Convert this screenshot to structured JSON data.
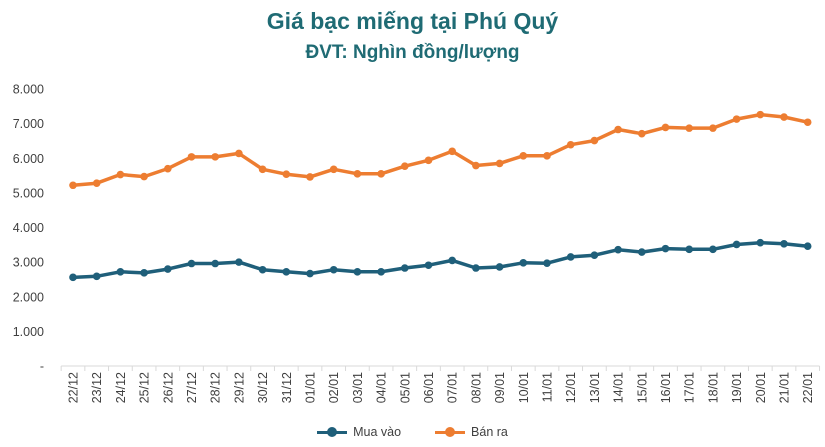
{
  "chart_data": {
    "type": "line",
    "title": "Giá bạc miếng tại Phú Quý",
    "subtitle": "ĐVT: Nghìn đồng/lượng",
    "xlabel": "",
    "ylabel": "",
    "ylim": [
      0,
      8000
    ],
    "y_ticks": [
      {
        "value": 8000,
        "label": "8.000"
      },
      {
        "value": 7000,
        "label": "7.000"
      },
      {
        "value": 6000,
        "label": "6.000"
      },
      {
        "value": 5000,
        "label": "5.000"
      },
      {
        "value": 4000,
        "label": "4.000"
      },
      {
        "value": 3000,
        "label": "3.000"
      },
      {
        "value": 2000,
        "label": "2.000"
      },
      {
        "value": 1000,
        "label": "1.000"
      },
      {
        "value": 0,
        "label": "-"
      }
    ],
    "grid": false,
    "legend_position": "bottom",
    "categories": [
      "22/12",
      "23/12",
      "24/12",
      "25/12",
      "26/12",
      "27/12",
      "28/12",
      "29/12",
      "30/12",
      "31/12",
      "01/01",
      "02/01",
      "03/01",
      "04/01",
      "05/01",
      "06/01",
      "07/01",
      "08/01",
      "09/01",
      "10/01",
      "11/01",
      "12/01",
      "13/01",
      "14/01",
      "15/01",
      "16/01",
      "17/01",
      "18/01",
      "19/01",
      "20/01",
      "21/01",
      "22/01"
    ],
    "series": [
      {
        "name": "Mua vào",
        "color": "#1f5f7a",
        "values": [
          2560,
          2590,
          2720,
          2690,
          2800,
          2960,
          2960,
          3000,
          2780,
          2720,
          2670,
          2780,
          2720,
          2720,
          2830,
          2910,
          3050,
          2830,
          2860,
          2980,
          2970,
          3150,
          3200,
          3360,
          3290,
          3390,
          3370,
          3370,
          3510,
          3560,
          3530,
          3460
        ]
      },
      {
        "name": "Bán ra",
        "color": "#ed7d31",
        "values": [
          5220,
          5280,
          5530,
          5470,
          5700,
          6040,
          6040,
          6140,
          5680,
          5540,
          5460,
          5680,
          5550,
          5550,
          5770,
          5940,
          6200,
          5790,
          5850,
          6070,
          6070,
          6390,
          6510,
          6830,
          6710,
          6890,
          6870,
          6870,
          7130,
          7260,
          7190,
          7040
        ]
      }
    ]
  }
}
